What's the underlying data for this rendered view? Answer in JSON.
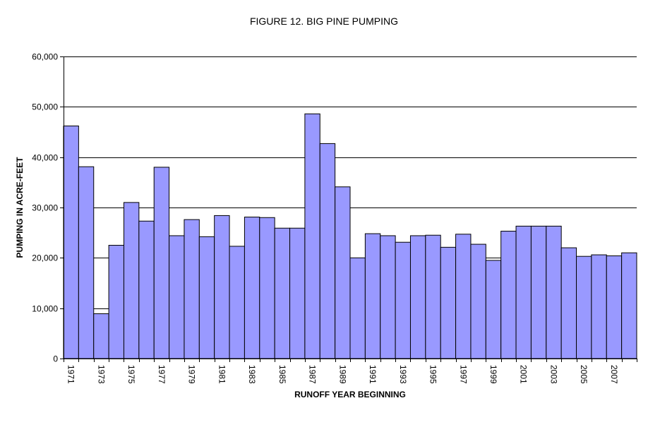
{
  "chart_data": {
    "type": "bar",
    "title": "FIGURE 12. BIG PINE PUMPING",
    "xlabel": "RUNOFF YEAR BEGINNING",
    "ylabel": "PUMPING IN ACRE-FEET",
    "ylim": [
      0,
      60000
    ],
    "yticks": [
      "0",
      "10,000",
      "20,000",
      "30,000",
      "40,000",
      "50,000",
      "60,000"
    ],
    "grid": true,
    "bar_color": "#9999ff",
    "categories": [
      "1971",
      "1972",
      "1973",
      "1974",
      "1975",
      "1976",
      "1977",
      "1978",
      "1979",
      "1980",
      "1981",
      "1982",
      "1983",
      "1984",
      "1985",
      "1986",
      "1987",
      "1988",
      "1989",
      "1990",
      "1991",
      "1992",
      "1993",
      "1994",
      "1995",
      "1996",
      "1997",
      "1998",
      "1999",
      "2000",
      "2001",
      "2002",
      "2003",
      "2004",
      "2005",
      "2006",
      "2007",
      "2008"
    ],
    "category_labels": [
      "1971",
      "",
      "1973",
      "",
      "1975",
      "",
      "1977",
      "",
      "1979",
      "",
      "1981",
      "",
      "1983",
      "",
      "1985",
      "",
      "1987",
      "",
      "1989",
      "",
      "1991",
      "",
      "1993",
      "",
      "1995",
      "",
      "1997",
      "",
      "1999",
      "",
      "2001",
      "",
      "2003",
      "",
      "2005",
      "",
      "2007",
      ""
    ],
    "values": [
      46200,
      38100,
      8900,
      22500,
      31000,
      27300,
      38000,
      24400,
      27600,
      24200,
      28400,
      22300,
      28100,
      28000,
      25900,
      25900,
      48600,
      42700,
      34100,
      20000,
      24800,
      24400,
      23100,
      24400,
      24500,
      22100,
      24700,
      22700,
      19500,
      25300,
      26300,
      26300,
      26300,
      22000,
      20300,
      20600,
      20400,
      21000
    ]
  }
}
